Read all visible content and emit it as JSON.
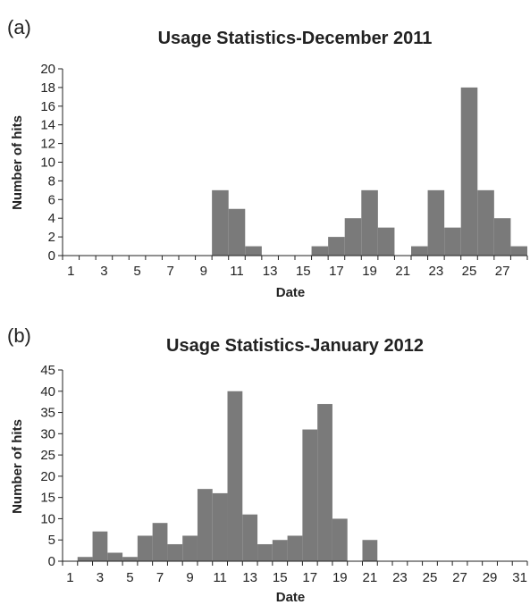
{
  "colors": {
    "bar": "#7a7a7a",
    "axis": "#222222",
    "text": "#222222"
  },
  "chart_data": [
    {
      "panel_label": "(a)",
      "type": "bar",
      "title": "Usage Statistics-December 2011",
      "xlabel": "Date",
      "ylabel": "Number of hits",
      "categories": [
        1,
        2,
        3,
        4,
        5,
        6,
        7,
        8,
        9,
        10,
        11,
        12,
        13,
        14,
        15,
        16,
        17,
        18,
        19,
        20,
        21,
        22,
        23,
        24,
        25,
        26,
        27,
        28
      ],
      "values": [
        0,
        0,
        0,
        0,
        0,
        0,
        0,
        0,
        0,
        7,
        5,
        1,
        0,
        0,
        0,
        1,
        2,
        4,
        7,
        3,
        0,
        1,
        7,
        3,
        18,
        7,
        4,
        1
      ],
      "x_tick_labels": [
        "1",
        "3",
        "5",
        "7",
        "9",
        "11",
        "13",
        "15",
        "17",
        "19",
        "21",
        "23",
        "25",
        "27"
      ],
      "x_tick_values": [
        1,
        3,
        5,
        7,
        9,
        11,
        13,
        15,
        17,
        19,
        21,
        23,
        25,
        27
      ],
      "y_ticks": [
        0,
        2,
        4,
        6,
        8,
        10,
        12,
        14,
        16,
        18,
        20
      ],
      "ylim": [
        0,
        20
      ],
      "grid": false
    },
    {
      "panel_label": "(b)",
      "type": "bar",
      "title": "Usage Statistics-January 2012",
      "xlabel": "Date",
      "ylabel": "Number of hits",
      "categories": [
        1,
        2,
        3,
        4,
        5,
        6,
        7,
        8,
        9,
        10,
        11,
        12,
        13,
        14,
        15,
        16,
        17,
        18,
        19,
        20,
        21,
        22,
        23,
        24,
        25,
        26,
        27,
        28,
        29,
        30,
        31
      ],
      "values": [
        0,
        1,
        7,
        2,
        1,
        6,
        9,
        4,
        6,
        17,
        16,
        40,
        11,
        4,
        5,
        6,
        31,
        37,
        10,
        0,
        5,
        0,
        0,
        0,
        0,
        0,
        0,
        0,
        0,
        0,
        0
      ],
      "x_tick_labels": [
        "1",
        "3",
        "5",
        "7",
        "9",
        "11",
        "13",
        "15",
        "17",
        "19",
        "21",
        "23",
        "25",
        "27",
        "29",
        "31"
      ],
      "x_tick_values": [
        1,
        3,
        5,
        7,
        9,
        11,
        13,
        15,
        17,
        19,
        21,
        23,
        25,
        27,
        29,
        31
      ],
      "y_ticks": [
        0,
        5,
        10,
        15,
        20,
        25,
        30,
        35,
        40,
        45
      ],
      "ylim": [
        0,
        45
      ],
      "grid": false
    }
  ]
}
